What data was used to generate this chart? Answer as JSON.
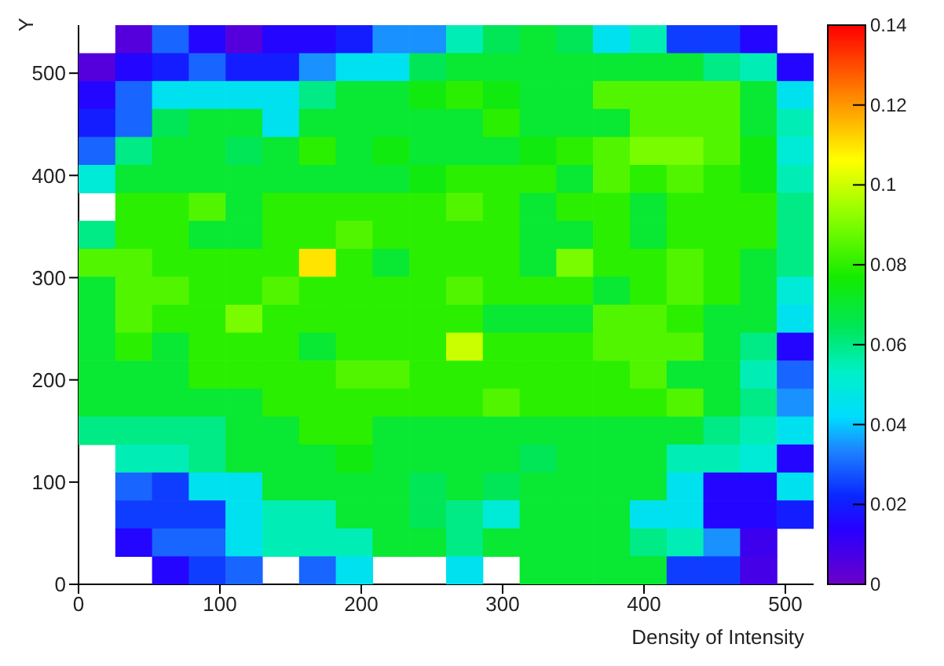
{
  "chart_data": {
    "type": "heatmap",
    "xlabel": "Density of Intensity",
    "ylabel": "Y",
    "x": [
      13,
      39,
      65,
      91,
      117,
      143,
      169,
      195,
      221,
      247,
      273,
      299,
      325,
      351,
      377,
      403,
      429,
      455,
      481,
      507
    ],
    "y": [
      533.3,
      505.9,
      478.6,
      451.3,
      423.9,
      396.6,
      369.2,
      341.9,
      314.5,
      287.2,
      259.8,
      232.5,
      205.1,
      177.8,
      150.4,
      123.1,
      95.7,
      68.4,
      41,
      13.7
    ],
    "xlim": [
      0,
      520
    ],
    "ylim": [
      0,
      547
    ],
    "xticks": [
      0,
      100,
      200,
      300,
      400,
      500
    ],
    "yticks": [
      0,
      100,
      200,
      300,
      400,
      500
    ],
    "clim": [
      0,
      0.14
    ],
    "cticks": [
      0,
      0.02,
      0.04,
      0.06,
      0.08,
      0.1,
      0.12,
      0.14
    ],
    "cells": [
      [
        null,
        0.005,
        0.03,
        0.015,
        0.005,
        0.015,
        0.015,
        0.02,
        0.035,
        0.035,
        0.055,
        0.065,
        0.07,
        0.065,
        0.045,
        0.055,
        0.025,
        0.025,
        0.015,
        null
      ],
      [
        0.005,
        0.015,
        0.02,
        0.03,
        0.02,
        0.02,
        0.035,
        0.045,
        0.045,
        0.065,
        0.07,
        0.07,
        0.07,
        0.07,
        0.07,
        0.07,
        0.07,
        0.06,
        0.055,
        0.015
      ],
      [
        0.015,
        0.03,
        0.045,
        0.045,
        0.045,
        0.045,
        0.06,
        0.07,
        0.07,
        0.075,
        0.08,
        0.075,
        0.07,
        0.07,
        0.085,
        0.085,
        0.085,
        0.085,
        0.07,
        0.045
      ],
      [
        0.02,
        0.03,
        0.065,
        0.07,
        0.07,
        0.045,
        0.07,
        0.07,
        0.07,
        0.07,
        0.07,
        0.08,
        0.07,
        0.07,
        0.07,
        0.085,
        0.085,
        0.085,
        0.07,
        0.055
      ],
      [
        0.03,
        0.06,
        0.07,
        0.07,
        0.065,
        0.07,
        0.08,
        0.07,
        0.075,
        0.07,
        0.07,
        0.07,
        0.075,
        0.08,
        0.085,
        0.09,
        0.09,
        0.085,
        0.075,
        0.05
      ],
      [
        0.05,
        0.07,
        0.07,
        0.07,
        0.07,
        0.07,
        0.07,
        0.07,
        0.07,
        0.075,
        0.08,
        0.08,
        0.08,
        0.07,
        0.085,
        0.08,
        0.085,
        0.08,
        0.075,
        0.055
      ],
      [
        null,
        0.08,
        0.08,
        0.085,
        0.07,
        0.08,
        0.08,
        0.08,
        0.08,
        0.08,
        0.085,
        0.08,
        0.07,
        0.08,
        0.08,
        0.07,
        0.08,
        0.08,
        0.08,
        0.06
      ],
      [
        0.06,
        0.08,
        0.08,
        0.07,
        0.07,
        0.08,
        0.08,
        0.085,
        0.08,
        0.08,
        0.08,
        0.08,
        0.07,
        0.07,
        0.08,
        0.07,
        0.08,
        0.08,
        0.08,
        0.06
      ],
      [
        0.085,
        0.085,
        0.08,
        0.08,
        0.08,
        0.08,
        0.11,
        0.08,
        0.07,
        0.08,
        0.08,
        0.08,
        0.07,
        0.09,
        0.08,
        0.08,
        0.085,
        0.08,
        0.07,
        0.06
      ],
      [
        0.07,
        0.085,
        0.085,
        0.08,
        0.08,
        0.085,
        0.08,
        0.08,
        0.08,
        0.08,
        0.085,
        0.08,
        0.08,
        0.08,
        0.07,
        0.08,
        0.085,
        0.08,
        0.07,
        0.05
      ],
      [
        0.07,
        0.085,
        0.08,
        0.08,
        0.09,
        0.08,
        0.08,
        0.08,
        0.08,
        0.08,
        0.08,
        0.07,
        0.07,
        0.07,
        0.085,
        0.085,
        0.08,
        0.07,
        0.07,
        0.045
      ],
      [
        0.07,
        0.08,
        0.07,
        0.08,
        0.08,
        0.08,
        0.07,
        0.08,
        0.08,
        0.08,
        0.1,
        0.08,
        0.08,
        0.08,
        0.085,
        0.085,
        0.085,
        0.07,
        0.06,
        0.015
      ],
      [
        0.07,
        0.07,
        0.07,
        0.08,
        0.08,
        0.08,
        0.08,
        0.085,
        0.085,
        0.08,
        0.08,
        0.08,
        0.08,
        0.08,
        0.08,
        0.085,
        0.07,
        0.07,
        0.055,
        0.03
      ],
      [
        0.07,
        0.07,
        0.07,
        0.07,
        0.07,
        0.08,
        0.08,
        0.08,
        0.08,
        0.08,
        0.08,
        0.085,
        0.08,
        0.08,
        0.08,
        0.08,
        0.085,
        0.07,
        0.06,
        0.035
      ],
      [
        0.06,
        0.06,
        0.06,
        0.06,
        0.07,
        0.07,
        0.08,
        0.08,
        0.07,
        0.07,
        0.07,
        0.07,
        0.07,
        0.07,
        0.07,
        0.07,
        0.07,
        0.06,
        0.055,
        0.045
      ],
      [
        null,
        0.055,
        0.055,
        0.06,
        0.07,
        0.07,
        0.07,
        0.075,
        0.07,
        0.07,
        0.07,
        0.07,
        0.065,
        0.07,
        0.07,
        0.07,
        0.055,
        0.055,
        0.05,
        0.015
      ],
      [
        null,
        0.03,
        0.025,
        0.045,
        0.045,
        0.07,
        0.07,
        0.07,
        0.07,
        0.065,
        0.07,
        0.065,
        0.07,
        0.07,
        0.07,
        0.07,
        0.045,
        0.015,
        0.015,
        0.045
      ],
      [
        null,
        0.025,
        0.025,
        0.025,
        0.045,
        0.055,
        0.055,
        0.07,
        0.07,
        0.065,
        0.06,
        0.05,
        0.07,
        0.07,
        0.07,
        0.045,
        0.045,
        0.015,
        0.015,
        0.02
      ],
      [
        null,
        0.015,
        0.03,
        0.03,
        0.045,
        0.055,
        0.055,
        0.055,
        0.07,
        0.07,
        0.06,
        0.07,
        0.07,
        0.07,
        0.07,
        0.06,
        0.055,
        0.035,
        0.01,
        null
      ],
      [
        null,
        null,
        0.015,
        0.025,
        0.03,
        null,
        0.03,
        0.045,
        null,
        null,
        0.045,
        null,
        0.07,
        0.07,
        0.07,
        0.07,
        0.025,
        0.025,
        0.008,
        null
      ]
    ]
  }
}
